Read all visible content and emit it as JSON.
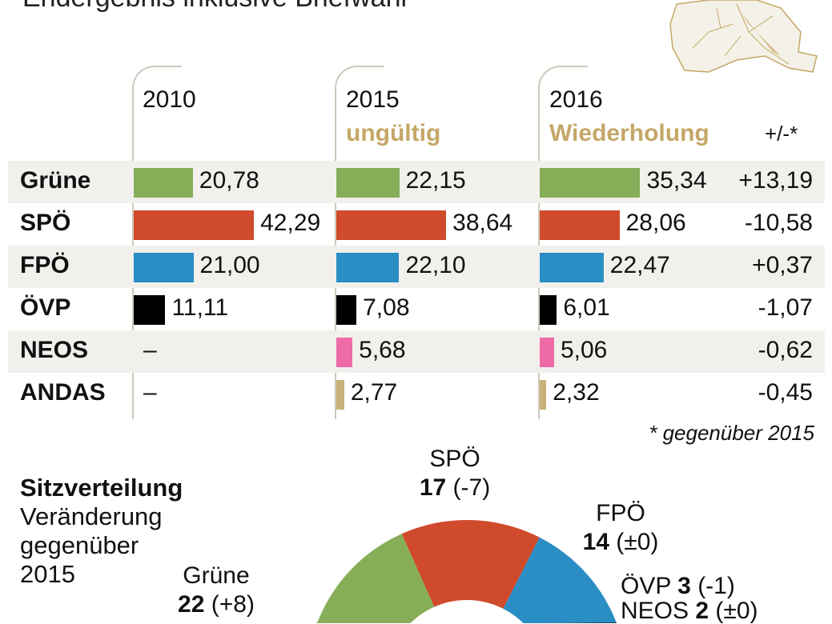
{
  "subtitle": "Endergebnis inklusive Briefwahl",
  "columns": [
    {
      "year": "2010",
      "note": ""
    },
    {
      "year": "2015",
      "note": "ungültig"
    },
    {
      "year": "2016",
      "note": "Wiederholung"
    }
  ],
  "delta_header": "+/-*",
  "footnote": "* gegenüber 2015",
  "chart_data": [
    {
      "type": "bar",
      "title": "Endergebnis inklusive Briefwahl",
      "categories": [
        "Grüne",
        "SPÖ",
        "FPÖ",
        "ÖVP",
        "NEOS",
        "ANDAS"
      ],
      "series": [
        {
          "name": "2010",
          "values": [
            20.78,
            42.29,
            21.0,
            11.11,
            null,
            null
          ],
          "labels": [
            "20,78",
            "42,29",
            "21,00",
            "11,11",
            "–",
            "–"
          ]
        },
        {
          "name": "2015",
          "values": [
            22.15,
            38.64,
            22.1,
            7.08,
            5.68,
            2.77
          ],
          "labels": [
            "22,15",
            "38,64",
            "22,10",
            "7,08",
            "5,68",
            "2,77"
          ]
        },
        {
          "name": "2016",
          "values": [
            35.34,
            28.06,
            22.47,
            6.01,
            5.06,
            2.32
          ],
          "labels": [
            "35,34",
            "28,06",
            "22,47",
            "6,01",
            "5,06",
            "2,32"
          ]
        }
      ],
      "delta": [
        "+13,19",
        "-10,58",
        "+0,37",
        "-1,07",
        "-0,62",
        "-0,45"
      ],
      "colors": [
        "#86ae58",
        "#d04a2c",
        "#2a8dc3",
        "#000000",
        "#ee6ba7",
        "#c8b07a"
      ]
    },
    {
      "type": "pie",
      "title": "Sitzverteilung",
      "subtitle_lines": [
        "Veränderung",
        "gegenüber",
        "2015"
      ],
      "slices": [
        {
          "name": "Grüne",
          "seats": 22,
          "seats_label": "22",
          "change": "(+8)",
          "color": "#86ae58"
        },
        {
          "name": "SPÖ",
          "seats": 17,
          "seats_label": "17",
          "change": "(-7)",
          "color": "#d04a2c"
        },
        {
          "name": "FPÖ",
          "seats": 14,
          "seats_label": "14",
          "change": "(±0)",
          "color": "#2a8dc3"
        },
        {
          "name": "ÖVP",
          "seats": 3,
          "seats_label": "3",
          "change": "(-1)",
          "color": "#000000"
        },
        {
          "name": "NEOS",
          "seats": 2,
          "seats_label": "2",
          "change": "(±0)",
          "color": "#ee6ba7"
        }
      ]
    }
  ]
}
